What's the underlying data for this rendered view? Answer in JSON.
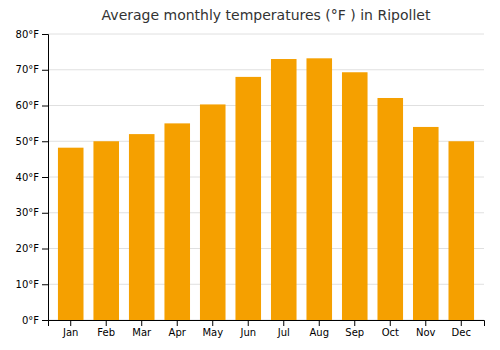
{
  "chart_data": {
    "type": "bar",
    "title": "Average monthly temperatures (°F ) in Ripollet",
    "categories": [
      "Jan",
      "Feb",
      "Mar",
      "Apr",
      "May",
      "Jun",
      "Jul",
      "Aug",
      "Sep",
      "Oct",
      "Nov",
      "Dec"
    ],
    "values": [
      48.2,
      50.0,
      52.0,
      55.0,
      60.3,
      68.0,
      73.0,
      73.2,
      69.3,
      62.1,
      54.0,
      50.0
    ],
    "color": "#F5A000",
    "ylim": [
      0,
      80
    ],
    "yticks": [
      {
        "value": 0,
        "label": "0°F"
      },
      {
        "value": 10,
        "label": "10°F"
      },
      {
        "value": 20,
        "label": "20°F"
      },
      {
        "value": 30,
        "label": "30°F"
      },
      {
        "value": 40,
        "label": "40°F"
      },
      {
        "value": 50,
        "label": "50°F"
      },
      {
        "value": 60,
        "label": "60°F"
      },
      {
        "value": 70,
        "label": "70°F"
      },
      {
        "value": 80,
        "label": "80°F"
      }
    ],
    "grid": true
  }
}
